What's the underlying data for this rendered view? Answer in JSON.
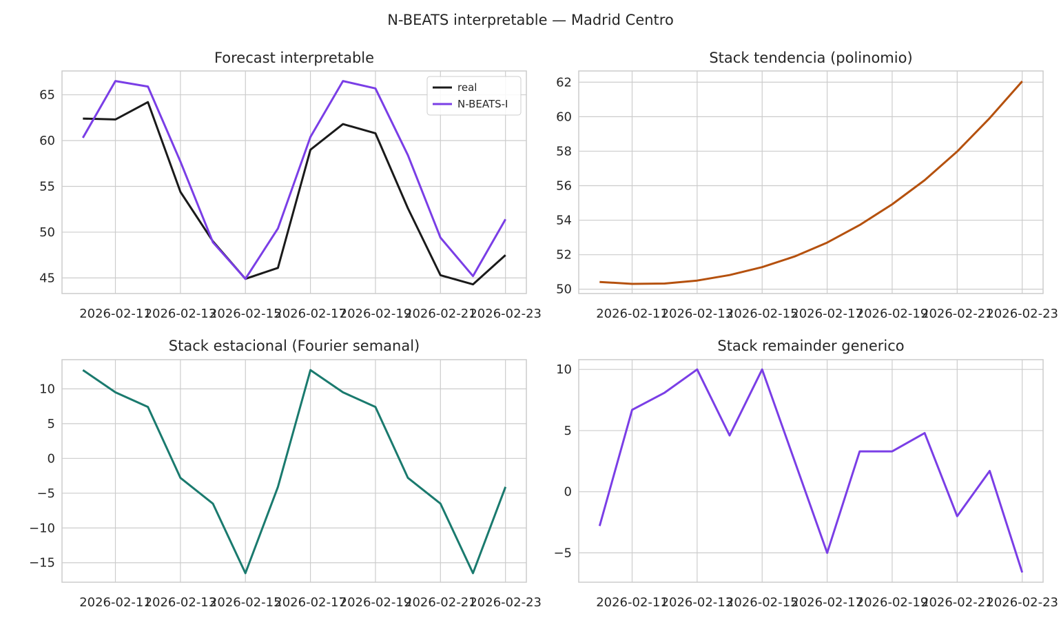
{
  "figure": {
    "title": "N-BEATS interpretable — Madrid Centro"
  },
  "chart_data": [
    {
      "type": "line",
      "title": "Forecast interpretable",
      "x": [
        "2026-02-10",
        "2026-02-11",
        "2026-02-12",
        "2026-02-13",
        "2026-02-14",
        "2026-02-15",
        "2026-02-16",
        "2026-02-17",
        "2026-02-18",
        "2026-02-19",
        "2026-02-20",
        "2026-02-21",
        "2026-02-22",
        "2026-02-23"
      ],
      "xticks": [
        "2026-02-11",
        "2026-02-13",
        "2026-02-15",
        "2026-02-17",
        "2026-02-19",
        "2026-02-21",
        "2026-02-23"
      ],
      "yticks": [
        45,
        50,
        55,
        60,
        65
      ],
      "ylim": [
        43.3,
        67.6
      ],
      "grid": true,
      "legend": "top-right",
      "series": [
        {
          "name": "real",
          "color": "#1a1a1a",
          "values": [
            62.4,
            62.3,
            64.2,
            54.4,
            49.0,
            44.9,
            46.1,
            59.0,
            61.8,
            60.8,
            52.6,
            45.3,
            44.3,
            47.5
          ]
        },
        {
          "name": "N-BEATS-I",
          "color": "#7a3ee6",
          "values": [
            60.3,
            66.5,
            65.9,
            57.7,
            48.9,
            44.9,
            50.4,
            60.4,
            66.5,
            65.7,
            58.4,
            49.4,
            45.2,
            51.4
          ]
        }
      ]
    },
    {
      "type": "line",
      "title": "Stack tendencia (polinomio)",
      "x": [
        "2026-02-10",
        "2026-02-11",
        "2026-02-12",
        "2026-02-13",
        "2026-02-14",
        "2026-02-15",
        "2026-02-16",
        "2026-02-17",
        "2026-02-18",
        "2026-02-19",
        "2026-02-20",
        "2026-02-21",
        "2026-02-22",
        "2026-02-23"
      ],
      "xticks": [
        "2026-02-11",
        "2026-02-13",
        "2026-02-15",
        "2026-02-17",
        "2026-02-19",
        "2026-02-21",
        "2026-02-23"
      ],
      "yticks": [
        50,
        52,
        54,
        56,
        58,
        60,
        62
      ],
      "ylim": [
        49.75,
        62.65
      ],
      "grid": true,
      "series": [
        {
          "color": "#b5510e",
          "values": [
            50.42,
            50.31,
            50.33,
            50.5,
            50.82,
            51.28,
            51.9,
            52.7,
            53.72,
            54.92,
            56.32,
            57.98,
            59.92,
            62.05
          ]
        }
      ]
    },
    {
      "type": "line",
      "title": "Stack estacional (Fourier semanal)",
      "x": [
        "2026-02-10",
        "2026-02-11",
        "2026-02-12",
        "2026-02-13",
        "2026-02-14",
        "2026-02-15",
        "2026-02-16",
        "2026-02-17",
        "2026-02-18",
        "2026-02-19",
        "2026-02-20",
        "2026-02-21",
        "2026-02-22",
        "2026-02-23"
      ],
      "xticks": [
        "2026-02-11",
        "2026-02-13",
        "2026-02-15",
        "2026-02-17",
        "2026-02-19",
        "2026-02-21",
        "2026-02-23"
      ],
      "yticks": [
        -15,
        -10,
        -5,
        0,
        5,
        10
      ],
      "ylim": [
        -17.8,
        14.2
      ],
      "grid": true,
      "series": [
        {
          "color": "#1a7a6e",
          "values": [
            12.7,
            9.5,
            7.4,
            -2.8,
            -6.5,
            -16.5,
            -4.1,
            12.7,
            9.5,
            7.4,
            -2.8,
            -6.5,
            -16.5,
            -4.1
          ]
        }
      ]
    },
    {
      "type": "line",
      "title": "Stack remainder generico",
      "x": [
        "2026-02-10",
        "2026-02-11",
        "2026-02-12",
        "2026-02-13",
        "2026-02-14",
        "2026-02-15",
        "2026-02-16",
        "2026-02-17",
        "2026-02-18",
        "2026-02-19",
        "2026-02-20",
        "2026-02-21",
        "2026-02-22",
        "2026-02-23"
      ],
      "xticks": [
        "2026-02-11",
        "2026-02-13",
        "2026-02-15",
        "2026-02-17",
        "2026-02-19",
        "2026-02-21",
        "2026-02-23"
      ],
      "yticks": [
        -5,
        0,
        5,
        10
      ],
      "ylim": [
        -7.4,
        10.8
      ],
      "grid": true,
      "series": [
        {
          "color": "#7a3ee6",
          "values": [
            -2.8,
            6.7,
            8.1,
            10.0,
            4.6,
            10.0,
            2.5,
            -5.0,
            3.3,
            3.3,
            4.8,
            -2.0,
            1.7,
            -6.6
          ]
        }
      ]
    }
  ]
}
